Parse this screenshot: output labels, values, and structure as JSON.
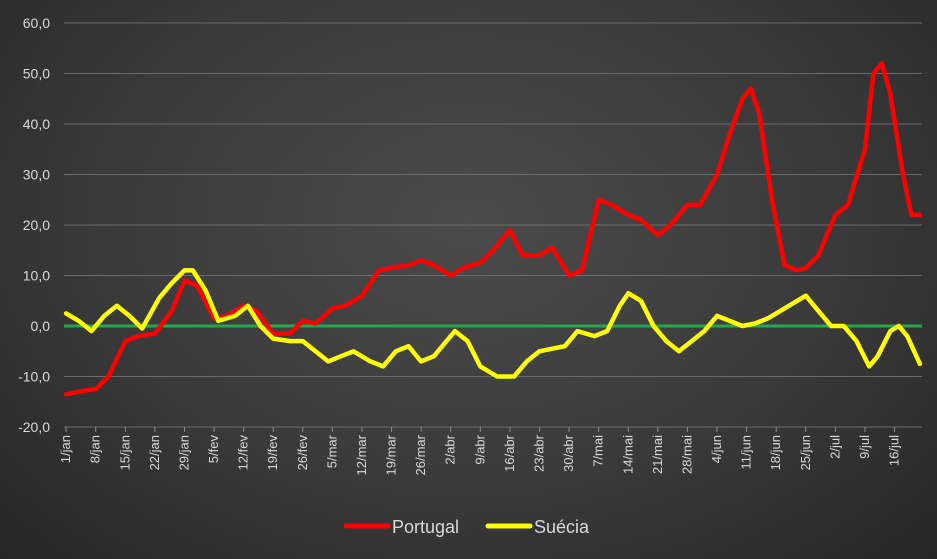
{
  "chart_data": {
    "type": "line",
    "title": "",
    "xlabel": "",
    "ylabel": "",
    "ylim": [
      -20,
      60
    ],
    "yticks": [
      "-20,0",
      "-10,0",
      "0,0",
      "10,0",
      "20,0",
      "30,0",
      "40,0",
      "50,0",
      "60,0"
    ],
    "ytick_values": [
      -20,
      -10,
      0,
      10,
      20,
      30,
      40,
      50,
      60
    ],
    "grid": true,
    "legend_position": "bottom",
    "x_count": 203,
    "xticks": [
      "1/jan",
      "8/jan",
      "15/jan",
      "22/jan",
      "29/jan",
      "5/fev",
      "12/fev",
      "19/fev",
      "26/fev",
      "5/mar",
      "12/mar",
      "19/mar",
      "26/mar",
      "2/abr",
      "9/abr",
      "16/abr",
      "23/abr",
      "30/abr",
      "7/mai",
      "14/mai",
      "21/mai",
      "28/mai",
      "4/jun",
      "11/jun",
      "18/jun",
      "25/jun",
      "2/jul",
      "9/jul",
      "16/jul"
    ],
    "xtick_index": [
      0,
      7,
      14,
      21,
      28,
      35,
      42,
      49,
      56,
      63,
      70,
      77,
      84,
      91,
      98,
      105,
      112,
      119,
      126,
      133,
      140,
      147,
      154,
      161,
      168,
      175,
      182,
      189,
      196
    ],
    "zero_line": 0,
    "series": [
      {
        "name": "Portugal",
        "color": "#ff0000",
        "points": [
          [
            0,
            -13.5
          ],
          [
            3,
            -13
          ],
          [
            7,
            -12.5
          ],
          [
            10,
            -10
          ],
          [
            14,
            -3
          ],
          [
            17,
            -2
          ],
          [
            21,
            -1.5
          ],
          [
            25,
            3
          ],
          [
            28,
            9
          ],
          [
            31,
            8
          ],
          [
            35,
            1.5
          ],
          [
            38,
            2
          ],
          [
            42,
            4
          ],
          [
            45,
            3
          ],
          [
            49,
            -1.5
          ],
          [
            53,
            -1.5
          ],
          [
            56,
            1
          ],
          [
            59,
            0.5
          ],
          [
            63,
            3.5
          ],
          [
            66,
            4
          ],
          [
            70,
            6
          ],
          [
            74,
            11
          ],
          [
            77,
            11.5
          ],
          [
            81,
            12
          ],
          [
            84,
            13
          ],
          [
            87,
            12
          ],
          [
            91,
            10
          ],
          [
            94,
            11.5
          ],
          [
            98,
            12.5
          ],
          [
            101,
            15
          ],
          [
            105,
            19
          ],
          [
            108,
            14
          ],
          [
            112,
            14
          ],
          [
            115,
            15.5
          ],
          [
            119,
            10
          ],
          [
            122,
            11
          ],
          [
            126,
            25
          ],
          [
            129,
            24
          ],
          [
            133,
            22
          ],
          [
            136,
            21
          ],
          [
            140,
            18
          ],
          [
            143,
            20
          ],
          [
            147,
            24
          ],
          [
            150,
            24
          ],
          [
            154,
            30
          ],
          [
            157,
            38
          ],
          [
            160,
            45
          ],
          [
            162,
            47
          ],
          [
            164,
            42
          ],
          [
            167,
            25
          ],
          [
            170,
            12
          ],
          [
            173,
            11
          ],
          [
            175,
            11.5
          ],
          [
            178,
            14
          ],
          [
            182,
            22
          ],
          [
            185,
            24
          ],
          [
            189,
            35
          ],
          [
            191,
            50
          ],
          [
            193,
            52
          ],
          [
            195,
            46
          ],
          [
            198,
            30
          ],
          [
            200,
            22
          ],
          [
            202,
            22
          ]
        ]
      },
      {
        "name": "Suécia",
        "color": "#ffff00",
        "points": [
          [
            0,
            2.5
          ],
          [
            3,
            1
          ],
          [
            6,
            -1
          ],
          [
            9,
            2
          ],
          [
            12,
            4
          ],
          [
            15,
            2
          ],
          [
            18,
            -0.5
          ],
          [
            22,
            5.5
          ],
          [
            25,
            8.5
          ],
          [
            28,
            11
          ],
          [
            30,
            11
          ],
          [
            33,
            7
          ],
          [
            36,
            1
          ],
          [
            40,
            2
          ],
          [
            43,
            4
          ],
          [
            46,
            0
          ],
          [
            49,
            -2.5
          ],
          [
            53,
            -3
          ],
          [
            56,
            -3
          ],
          [
            59,
            -5
          ],
          [
            62,
            -7
          ],
          [
            65,
            -6
          ],
          [
            68,
            -5
          ],
          [
            72,
            -7
          ],
          [
            75,
            -8
          ],
          [
            78,
            -5
          ],
          [
            81,
            -4
          ],
          [
            84,
            -7
          ],
          [
            87,
            -6
          ],
          [
            90,
            -3
          ],
          [
            92,
            -1
          ],
          [
            95,
            -3
          ],
          [
            98,
            -8
          ],
          [
            102,
            -10
          ],
          [
            106,
            -10
          ],
          [
            109,
            -7
          ],
          [
            112,
            -5
          ],
          [
            115,
            -4.5
          ],
          [
            118,
            -4
          ],
          [
            121,
            -1
          ],
          [
            125,
            -2
          ],
          [
            128,
            -1
          ],
          [
            131,
            4
          ],
          [
            133,
            6.5
          ],
          [
            136,
            5
          ],
          [
            139,
            0
          ],
          [
            142,
            -3
          ],
          [
            145,
            -5
          ],
          [
            148,
            -3
          ],
          [
            151,
            -1
          ],
          [
            154,
            2
          ],
          [
            157,
            1
          ],
          [
            160,
            0
          ],
          [
            163,
            0.5
          ],
          [
            166,
            1.5
          ],
          [
            169,
            3
          ],
          [
            172,
            4.5
          ],
          [
            175,
            6
          ],
          [
            178,
            3
          ],
          [
            181,
            0
          ],
          [
            184,
            0
          ],
          [
            187,
            -3
          ],
          [
            190,
            -8
          ],
          [
            192,
            -6
          ],
          [
            195,
            -1
          ],
          [
            197,
            0
          ],
          [
            199,
            -2
          ],
          [
            202,
            -7.5
          ]
        ]
      }
    ]
  }
}
